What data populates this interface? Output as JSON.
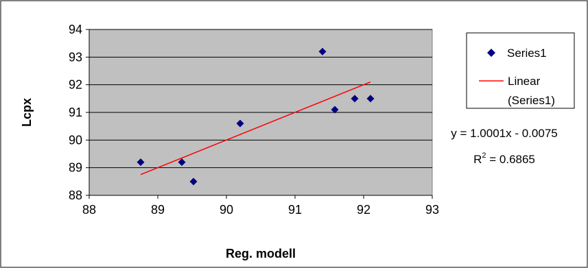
{
  "chart_data": {
    "type": "scatter",
    "xlabel": "Reg. modell",
    "ylabel": "Lcpx",
    "xlim": [
      88,
      93
    ],
    "ylim": [
      88,
      94
    ],
    "xticks": [
      "88",
      "89",
      "90",
      "91",
      "92",
      "93"
    ],
    "yticks": [
      "88",
      "89",
      "90",
      "91",
      "92",
      "93",
      "94"
    ],
    "grid": "horizontal",
    "legend_position": "right",
    "plot_background": "#c0c0c0",
    "series": [
      {
        "name": "Series1",
        "marker": "diamond",
        "color": "#000080",
        "points": [
          {
            "x": 88.75,
            "y": 89.2
          },
          {
            "x": 89.35,
            "y": 89.2
          },
          {
            "x": 89.52,
            "y": 88.5
          },
          {
            "x": 90.2,
            "y": 90.6
          },
          {
            "x": 91.4,
            "y": 93.2
          },
          {
            "x": 91.58,
            "y": 91.1
          },
          {
            "x": 91.87,
            "y": 91.5
          },
          {
            "x": 92.1,
            "y": 91.5
          }
        ]
      }
    ],
    "trendline": {
      "name": "Linear (Series1)",
      "legend_line1": "Linear",
      "legend_line2": "(Series1)",
      "color": "#ff0000",
      "x_start": 88.75,
      "x_end": 92.1,
      "slope": 1.0001,
      "intercept": -0.0075,
      "equation": "y = 1.0001x - 0.0075",
      "r2_prefix": "R",
      "r2_sup": "2",
      "r2_suffix": " = 0.6865"
    }
  }
}
